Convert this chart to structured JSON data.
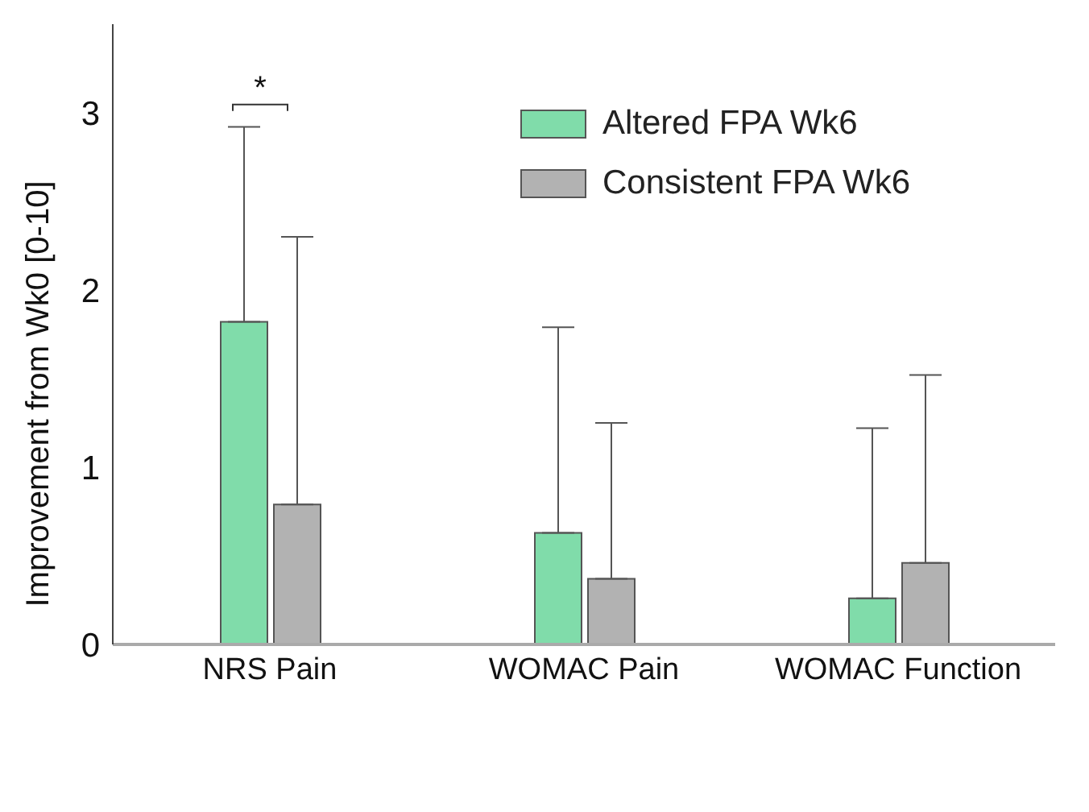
{
  "chart_data": {
    "type": "bar",
    "ylabel": "Improvement from Wk0 [0-10]",
    "categories": [
      "NRS Pain",
      "WOMAC Pain",
      "WOMAC Function"
    ],
    "series": [
      {
        "name": "Altered FPA Wk6",
        "color": "#80dcaa",
        "values": [
          1.82,
          0.63,
          0.26
        ],
        "errors": [
          [
            1.82,
            2.92
          ],
          [
            0.63,
            1.79
          ],
          [
            0.26,
            1.22
          ]
        ]
      },
      {
        "name": "Consistent FPA Wk6",
        "color": "#b2b2b2",
        "values": [
          0.79,
          0.37,
          0.46
        ],
        "errors": [
          [
            0.79,
            2.3
          ],
          [
            0.37,
            1.25
          ],
          [
            0.46,
            1.52
          ]
        ]
      }
    ],
    "ylim": [
      0,
      3.5
    ],
    "yticks": [
      0,
      1,
      2,
      3
    ],
    "grid": false,
    "legend": "top right",
    "annotations": [
      "*"
    ]
  }
}
